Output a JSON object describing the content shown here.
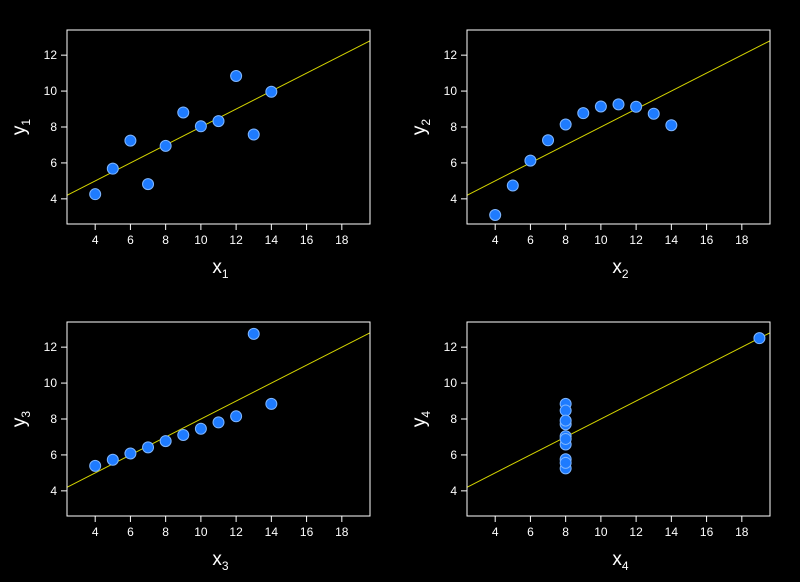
{
  "colors": {
    "background": "#000000",
    "axes": "#ffffff",
    "fit_line": "#d4d400",
    "point_fill": "#1e7bff",
    "point_stroke": "#7fb6ff"
  },
  "chart_data": [
    {
      "type": "scatter",
      "name": "panel-1",
      "xlabel": {
        "base": "x",
        "sub": "1"
      },
      "ylabel": {
        "base": "y",
        "sub": "1"
      },
      "xlim": [
        2.4,
        19.6
      ],
      "ylim": [
        2.6,
        13.4
      ],
      "xticks": [
        4,
        6,
        8,
        10,
        12,
        14,
        16,
        18
      ],
      "yticks": [
        4,
        6,
        8,
        10,
        12
      ],
      "fit_line": {
        "intercept": 3.0,
        "slope": 0.5
      },
      "grid": false,
      "points": [
        {
          "x": 10,
          "y": 8.04
        },
        {
          "x": 8,
          "y": 6.95
        },
        {
          "x": 13,
          "y": 7.58
        },
        {
          "x": 9,
          "y": 8.81
        },
        {
          "x": 11,
          "y": 8.33
        },
        {
          "x": 14,
          "y": 9.96
        },
        {
          "x": 6,
          "y": 7.24
        },
        {
          "x": 4,
          "y": 4.26
        },
        {
          "x": 12,
          "y": 10.84
        },
        {
          "x": 7,
          "y": 4.82
        },
        {
          "x": 5,
          "y": 5.68
        }
      ]
    },
    {
      "type": "scatter",
      "name": "panel-2",
      "xlabel": {
        "base": "x",
        "sub": "2"
      },
      "ylabel": {
        "base": "y",
        "sub": "2"
      },
      "xlim": [
        2.4,
        19.6
      ],
      "ylim": [
        2.6,
        13.4
      ],
      "xticks": [
        4,
        6,
        8,
        10,
        12,
        14,
        16,
        18
      ],
      "yticks": [
        4,
        6,
        8,
        10,
        12
      ],
      "fit_line": {
        "intercept": 3.0,
        "slope": 0.5
      },
      "grid": false,
      "points": [
        {
          "x": 10,
          "y": 9.14
        },
        {
          "x": 8,
          "y": 8.14
        },
        {
          "x": 13,
          "y": 8.74
        },
        {
          "x": 9,
          "y": 8.77
        },
        {
          "x": 11,
          "y": 9.26
        },
        {
          "x": 14,
          "y": 8.1
        },
        {
          "x": 6,
          "y": 6.13
        },
        {
          "x": 4,
          "y": 3.1
        },
        {
          "x": 12,
          "y": 9.13
        },
        {
          "x": 7,
          "y": 7.26
        },
        {
          "x": 5,
          "y": 4.74
        }
      ]
    },
    {
      "type": "scatter",
      "name": "panel-3",
      "xlabel": {
        "base": "x",
        "sub": "3"
      },
      "ylabel": {
        "base": "y",
        "sub": "3"
      },
      "xlim": [
        2.4,
        19.6
      ],
      "ylim": [
        2.6,
        13.4
      ],
      "xticks": [
        4,
        6,
        8,
        10,
        12,
        14,
        16,
        18
      ],
      "yticks": [
        4,
        6,
        8,
        10,
        12
      ],
      "fit_line": {
        "intercept": 3.0,
        "slope": 0.5
      },
      "grid": false,
      "points": [
        {
          "x": 10,
          "y": 7.46
        },
        {
          "x": 8,
          "y": 6.77
        },
        {
          "x": 13,
          "y": 12.74
        },
        {
          "x": 9,
          "y": 7.11
        },
        {
          "x": 11,
          "y": 7.81
        },
        {
          "x": 14,
          "y": 8.84
        },
        {
          "x": 6,
          "y": 6.08
        },
        {
          "x": 4,
          "y": 5.39
        },
        {
          "x": 12,
          "y": 8.15
        },
        {
          "x": 7,
          "y": 6.42
        },
        {
          "x": 5,
          "y": 5.73
        }
      ]
    },
    {
      "type": "scatter",
      "name": "panel-4",
      "xlabel": {
        "base": "x",
        "sub": "4"
      },
      "ylabel": {
        "base": "y",
        "sub": "4"
      },
      "xlim": [
        2.4,
        19.6
      ],
      "ylim": [
        2.6,
        13.4
      ],
      "xticks": [
        4,
        6,
        8,
        10,
        12,
        14,
        16,
        18
      ],
      "yticks": [
        4,
        6,
        8,
        10,
        12
      ],
      "fit_line": {
        "intercept": 3.0,
        "slope": 0.5
      },
      "grid": false,
      "points": [
        {
          "x": 8,
          "y": 6.58
        },
        {
          "x": 8,
          "y": 5.76
        },
        {
          "x": 8,
          "y": 7.71
        },
        {
          "x": 8,
          "y": 8.84
        },
        {
          "x": 8,
          "y": 8.47
        },
        {
          "x": 8,
          "y": 7.04
        },
        {
          "x": 8,
          "y": 5.25
        },
        {
          "x": 19,
          "y": 12.5
        },
        {
          "x": 8,
          "y": 5.56
        },
        {
          "x": 8,
          "y": 7.91
        },
        {
          "x": 8,
          "y": 6.89
        }
      ]
    }
  ]
}
